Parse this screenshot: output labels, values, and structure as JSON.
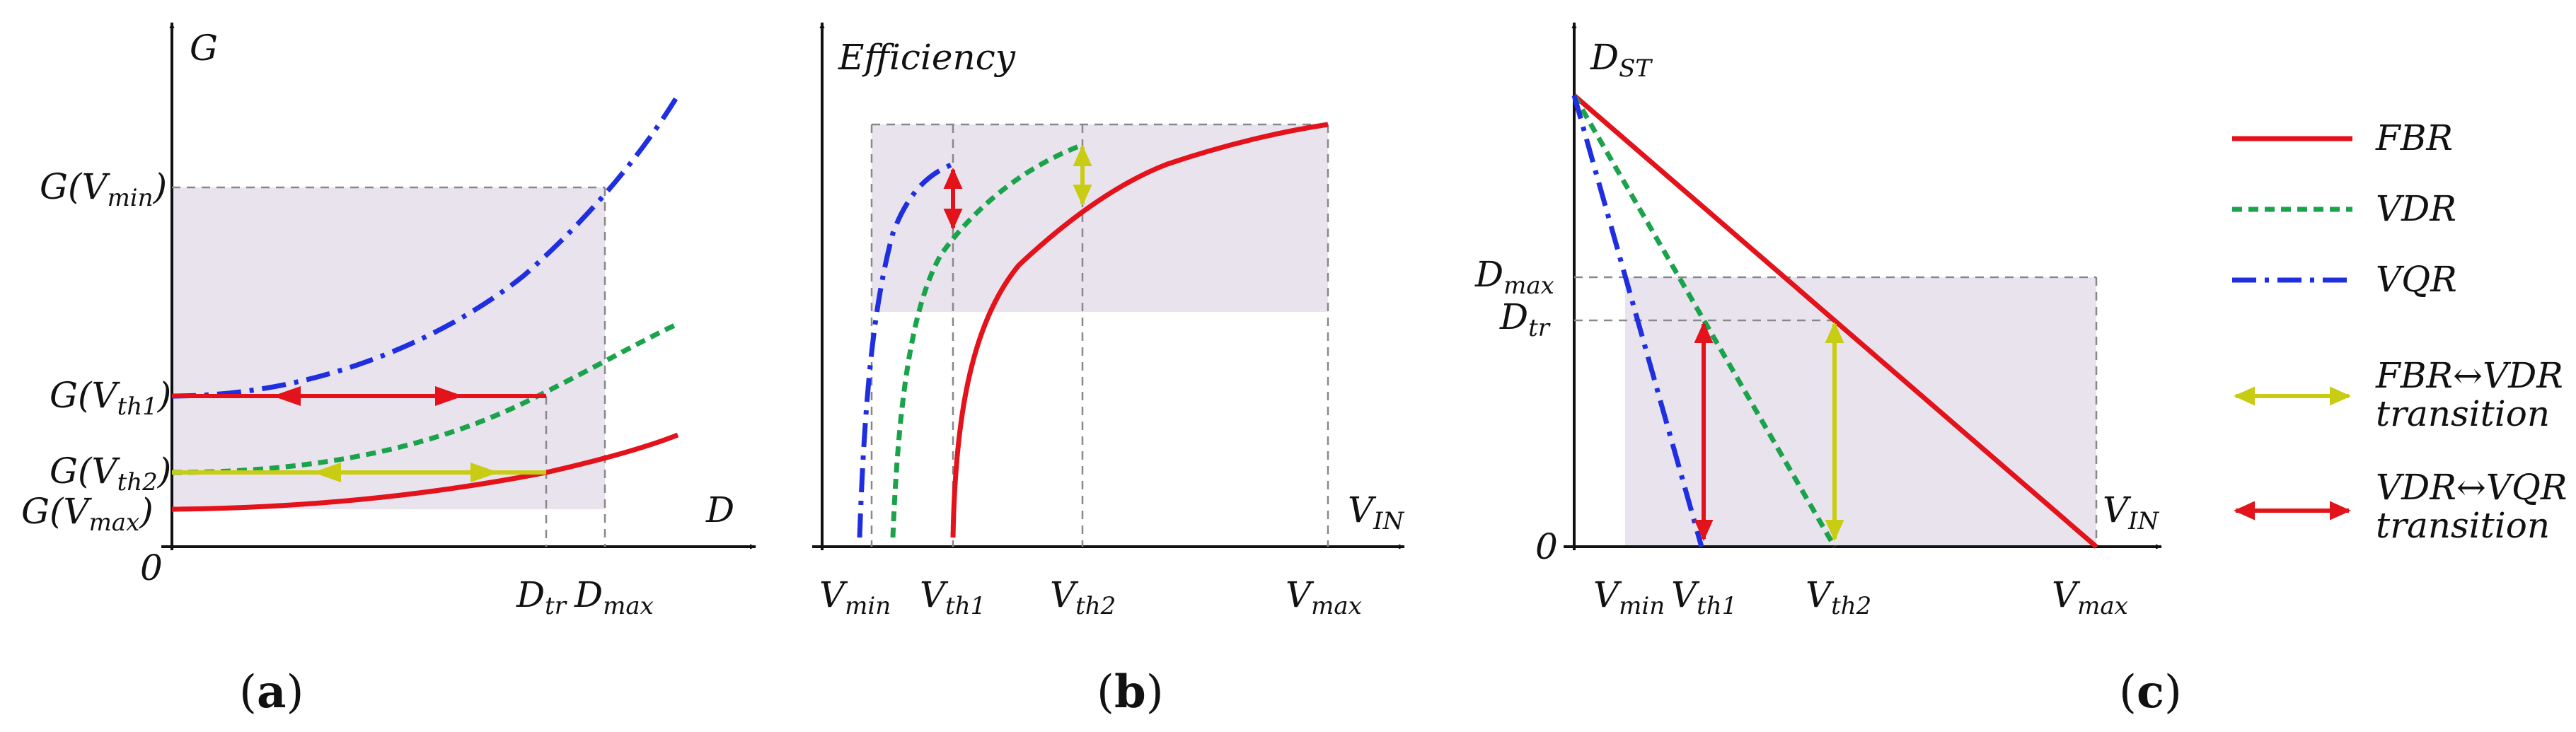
{
  "panel_a": {
    "y_axis_label": "G",
    "x_axis_label": "D",
    "origin_label": "0",
    "y_ticks": [
      {
        "main": "G(V",
        "sub": "min",
        "tail": ")"
      },
      {
        "main": "G(V",
        "sub": "th1",
        "tail": ")"
      },
      {
        "main": "G(V",
        "sub": "th2",
        "tail": ")"
      },
      {
        "main": "G(V",
        "sub": "max",
        "tail": ")"
      }
    ],
    "x_ticks": [
      {
        "main": "D",
        "sub": "tr"
      },
      {
        "main": "D",
        "sub": "max"
      }
    ],
    "caption": {
      "open": "(",
      "letter": "a",
      "close": ")"
    }
  },
  "panel_b": {
    "y_axis_label": "Efficiency",
    "x_axis_label": {
      "main": "V",
      "sub": "IN"
    },
    "x_ticks": [
      {
        "main": "V",
        "sub": "min"
      },
      {
        "main": "V",
        "sub": "th1"
      },
      {
        "main": "V",
        "sub": "th2"
      },
      {
        "main": "V",
        "sub": "max"
      }
    ],
    "caption": {
      "open": "(",
      "letter": "b",
      "close": ")"
    }
  },
  "panel_c": {
    "y_axis_label": {
      "main": "D",
      "sub": "ST"
    },
    "x_axis_label": {
      "main": "V",
      "sub": "IN"
    },
    "origin_label": "0",
    "y_ticks": [
      {
        "main": "D",
        "sub": "max"
      },
      {
        "main": "D",
        "sub": "tr"
      }
    ],
    "x_ticks": [
      {
        "main": "V",
        "sub": "min"
      },
      {
        "main": "V",
        "sub": "th1"
      },
      {
        "main": "V",
        "sub": "th2"
      },
      {
        "main": "V",
        "sub": "max"
      }
    ],
    "caption": {
      "open": "(",
      "letter": "c",
      "close": ")"
    }
  },
  "legend": {
    "items": [
      {
        "line1": "FBR",
        "line2": ""
      },
      {
        "line1": "VDR",
        "line2": ""
      },
      {
        "line1": "VQR",
        "line2": ""
      },
      {
        "line1": "FBR↔VDR",
        "line2": "transition"
      },
      {
        "line1": "VDR↔VQR",
        "line2": "transition"
      }
    ]
  },
  "colors": {
    "fbr": "#e3121b",
    "vdr": "#1aa34a",
    "vqr": "#1f2fe0",
    "transition_fbr_vdr": "#c8cc12",
    "transition_vdr_vqr": "#e3121b",
    "shade": "#e9e3ee"
  }
}
